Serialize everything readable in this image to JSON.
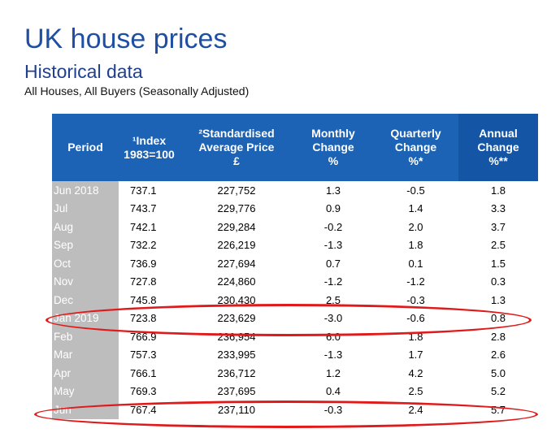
{
  "title": "UK house prices",
  "subtitle": "Historical data",
  "note": "All Houses, All Buyers (Seasonally Adjusted)",
  "headers": [
    "Period",
    "¹Index\n1983=100",
    "²Standardised\nAverage Price\n£",
    "Monthly\nChange\n%",
    "Quarterly\nChange\n%*",
    "Annual\nChange\n%**"
  ],
  "rows": [
    [
      "Jun 2018",
      "737.1",
      "227,752",
      "1.3",
      "-0.5",
      "1.8"
    ],
    [
      "Jul",
      "743.7",
      "229,776",
      "0.9",
      "1.4",
      "3.3"
    ],
    [
      "Aug",
      "742.1",
      "229,284",
      "-0.2",
      "2.0",
      "3.7"
    ],
    [
      "Sep",
      "732.2",
      "226,219",
      "-1.3",
      "1.8",
      "2.5"
    ],
    [
      "Oct",
      "736.9",
      "227,694",
      "0.7",
      "0.1",
      "1.5"
    ],
    [
      "Nov",
      "727.8",
      "224,860",
      "-1.2",
      "-1.2",
      "0.3"
    ],
    [
      "Dec",
      "745.8",
      "230,430",
      "2.5",
      "-0.3",
      "1.3"
    ],
    [
      "Jan 2019",
      "723.8",
      "223,629",
      "-3.0",
      "-0.6",
      "0.8"
    ],
    [
      "Feb",
      "766.9",
      "236,954",
      "6.0",
      "1.8",
      "2.8"
    ],
    [
      "Mar",
      "757.3",
      "233,995",
      "-1.3",
      "1.7",
      "2.6"
    ],
    [
      "Apr",
      "766.1",
      "236,712",
      "1.2",
      "4.2",
      "5.0"
    ],
    [
      "May",
      "769.3",
      "237,695",
      "0.4",
      "2.5",
      "5.2"
    ],
    [
      "Jun",
      "767.4",
      "237,110",
      "-0.3",
      "2.4",
      "5.7"
    ]
  ],
  "colors": {
    "header_bg": "#1c62b5",
    "title": "#1f4fa3",
    "period_bg": "#bdbdbd",
    "highlight_oval": "#e01a1a"
  }
}
